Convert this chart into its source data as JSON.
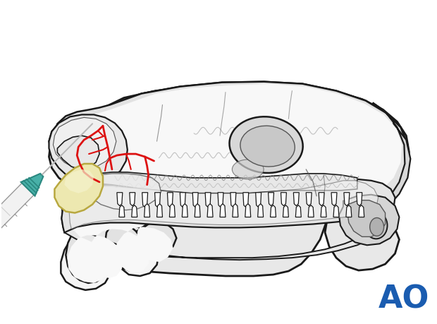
{
  "background_color": "#ffffff",
  "ao_text": "AO",
  "ao_color": "#1a5cb0",
  "ao_fontsize": 32,
  "skull_light": "#e8e8e8",
  "skull_mid": "#d0d0d0",
  "skull_dark": "#b8b8b8",
  "skull_edge": "#1a1a1a",
  "skull_inner_edge": "#555555",
  "fracture_color": "#dd1111",
  "acrylic_color": "#ede8b0",
  "acrylic_highlight": "#f5f2cc",
  "acrylic_edge": "#b8a840",
  "syringe_white": "#f0f0f0",
  "syringe_gray": "#cccccc",
  "syringe_teal": "#48b0a8",
  "syringe_teal_dark": "#2a8880",
  "needle_color": "#aaaaaa",
  "figsize": [
    6.2,
    4.59
  ],
  "dpi": 100
}
